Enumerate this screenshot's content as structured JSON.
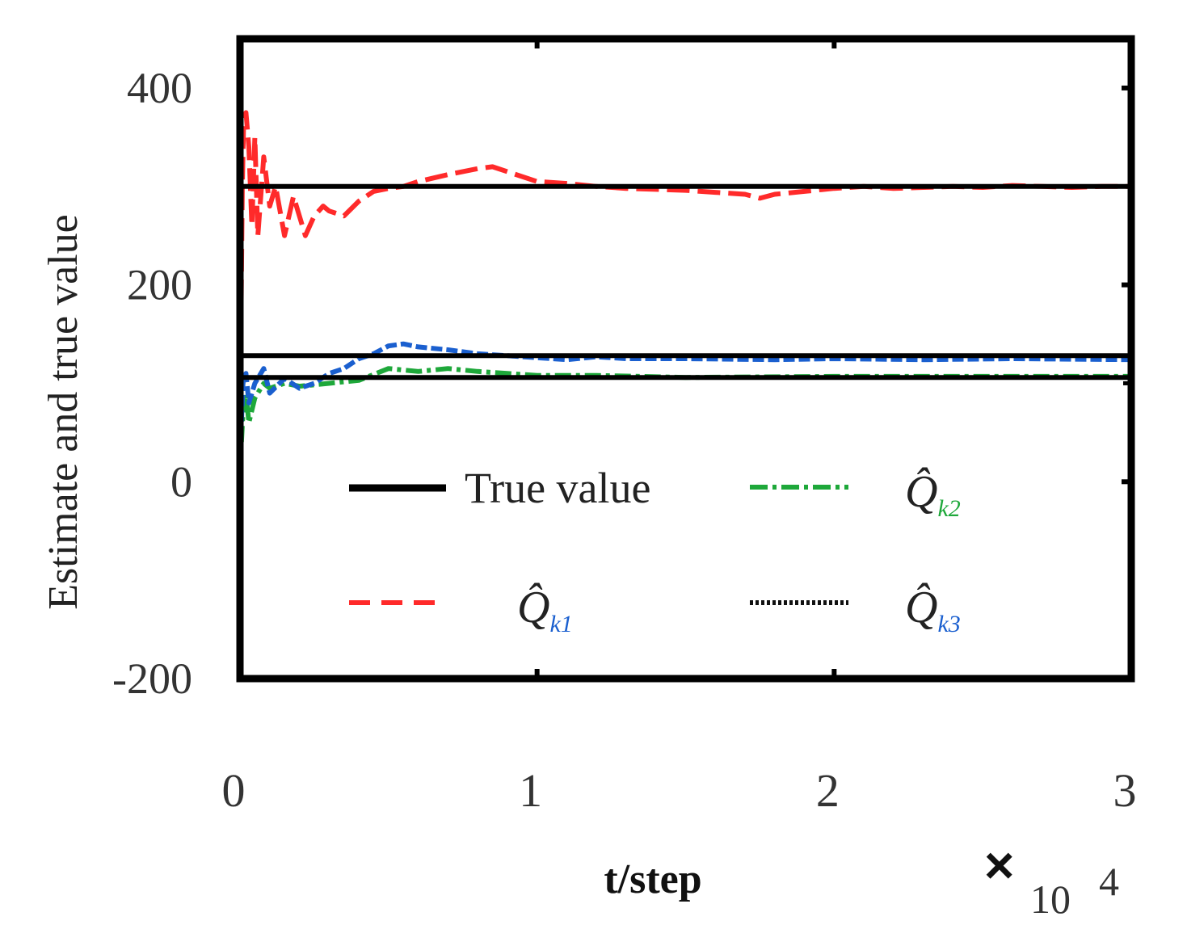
{
  "chart_data": {
    "type": "line",
    "title": "",
    "xlabel": "t/step",
    "ylabel": "Estimate and true value",
    "x_multiplier": {
      "symbol": "×",
      "base": "10",
      "exponent": "4"
    },
    "xlim": [
      0,
      3
    ],
    "ylim": [
      -200,
      450
    ],
    "x_ticks": [
      0,
      1,
      2,
      3
    ],
    "y_ticks": [
      -200,
      0,
      200,
      400
    ],
    "x_tick_labels": [
      "0",
      "1",
      "2",
      "3"
    ],
    "y_tick_labels": [
      "-200",
      "0",
      "200",
      "400"
    ],
    "grid": false,
    "legend": {
      "placement": "lower-center",
      "entries": [
        {
          "key": "true",
          "label": "True value",
          "style": "solid",
          "color": "#000000"
        },
        {
          "key": "q1",
          "label": "Q̂",
          "subscript": "k1",
          "style": "dashed",
          "color": "#ff2a2a"
        },
        {
          "key": "q2",
          "label": "Q̂",
          "subscript": "k2",
          "style": "dashdot",
          "color": "#1ea83a"
        },
        {
          "key": "q3",
          "label": "Q̂",
          "subscript": "k3",
          "style": "dotted",
          "color": "#111111"
        }
      ]
    },
    "true_values": [
      300,
      128,
      106
    ],
    "series": [
      {
        "key": "q1",
        "color": "#ff2a2a",
        "x": [
          0,
          0.003,
          0.008,
          0.012,
          0.02,
          0.03,
          0.04,
          0.05,
          0.06,
          0.08,
          0.1,
          0.12,
          0.15,
          0.18,
          0.2,
          0.22,
          0.25,
          0.28,
          0.3,
          0.35,
          0.4,
          0.45,
          0.5,
          0.55,
          0.6,
          0.7,
          0.8,
          0.85,
          0.9,
          1.0,
          1.1,
          1.2,
          1.3,
          1.4,
          1.5,
          1.6,
          1.7,
          1.75,
          1.8,
          1.9,
          2.0,
          2.1,
          2.2,
          2.3,
          2.4,
          2.5,
          2.6,
          2.7,
          2.8,
          2.9,
          3.0
        ],
        "y": [
          120,
          150,
          300,
          360,
          375,
          340,
          260,
          350,
          250,
          330,
          280,
          300,
          250,
          290,
          270,
          250,
          270,
          280,
          275,
          270,
          285,
          295,
          298,
          300,
          305,
          312,
          318,
          320,
          315,
          305,
          303,
          300,
          298,
          297,
          296,
          294,
          292,
          288,
          292,
          295,
          298,
          300,
          298,
          299,
          300,
          299,
          301,
          300,
          299,
          300,
          300
        ]
      },
      {
        "key": "q2",
        "color": "#1ea83a",
        "x": [
          0,
          0.005,
          0.01,
          0.02,
          0.03,
          0.05,
          0.08,
          0.1,
          0.15,
          0.2,
          0.3,
          0.4,
          0.5,
          0.6,
          0.7,
          0.8,
          0.9,
          1.0,
          1.2,
          1.5,
          2.0,
          2.5,
          3.0
        ],
        "y": [
          10,
          40,
          70,
          90,
          60,
          85,
          100,
          95,
          100,
          97,
          100,
          103,
          115,
          112,
          115,
          112,
          110,
          108,
          108,
          106,
          107,
          107,
          107
        ]
      },
      {
        "key": "q3",
        "color": "#1a5fcf",
        "x": [
          0,
          0.005,
          0.01,
          0.02,
          0.03,
          0.05,
          0.08,
          0.1,
          0.15,
          0.2,
          0.25,
          0.3,
          0.35,
          0.4,
          0.45,
          0.5,
          0.55,
          0.6,
          0.7,
          0.8,
          0.9,
          1.0,
          1.1,
          1.2,
          1.3,
          1.5,
          1.8,
          2.0,
          2.3,
          2.6,
          3.0
        ],
        "y": [
          30,
          60,
          100,
          110,
          80,
          100,
          115,
          90,
          105,
          95,
          100,
          110,
          115,
          125,
          130,
          138,
          140,
          137,
          134,
          130,
          128,
          126,
          124,
          127,
          125,
          125,
          124,
          125,
          124,
          125,
          124
        ]
      }
    ]
  }
}
